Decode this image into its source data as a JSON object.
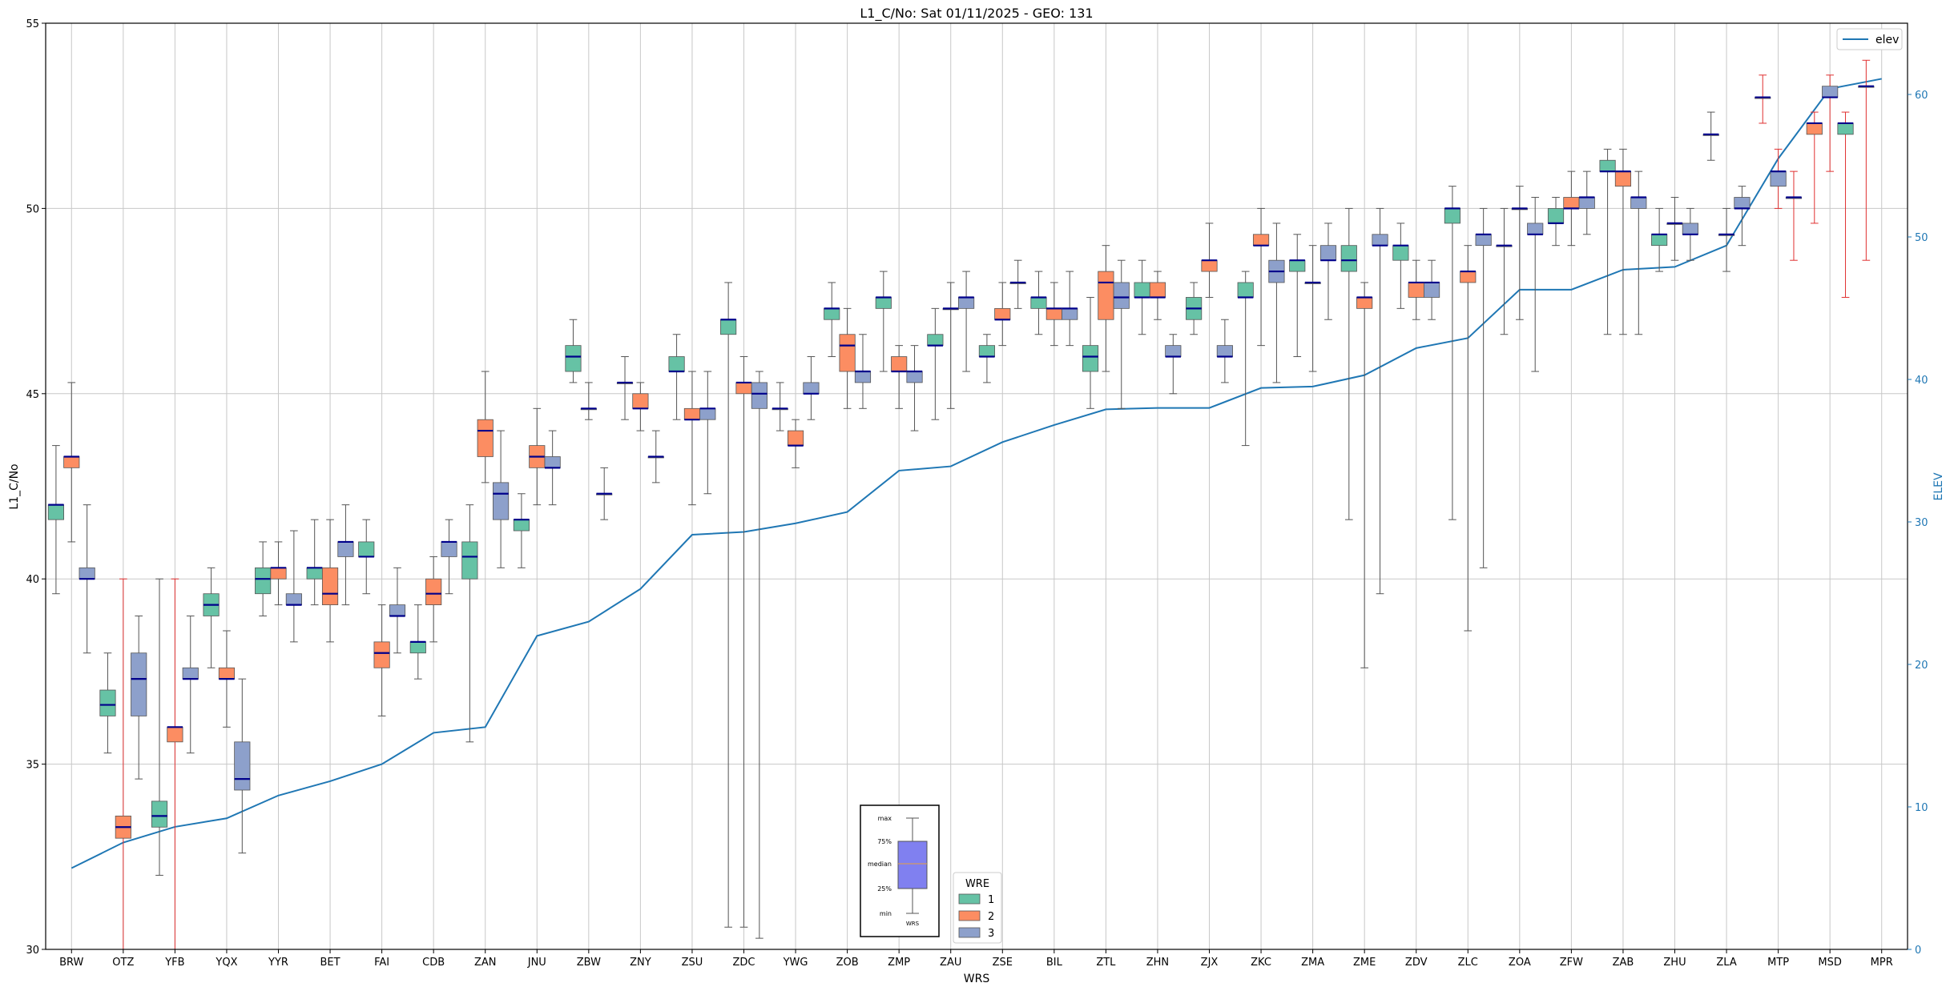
{
  "chart_data": {
    "type": "box",
    "title": "L1_C/No: Sat 01/11/2025 - GEO: 131",
    "xlabel": "WRS",
    "ylabel": "L1_C/No",
    "y2label": "ELEV",
    "ylim": [
      30,
      55
    ],
    "y2lim": [
      0,
      65
    ],
    "yticks": [
      30,
      35,
      40,
      45,
      50,
      55
    ],
    "y2ticks": [
      0,
      10,
      20,
      30,
      40,
      50,
      60
    ],
    "grid": true,
    "colors": {
      "wre1": "#66c2a5",
      "wre2": "#fc8d62",
      "wre3": "#8da0cb",
      "median": "#00008b",
      "elev": "#1f77b4",
      "outlier_whisker": "#e03030",
      "whisker": "#555555"
    },
    "categories": [
      "BRW",
      "OTZ",
      "YFB",
      "YQX",
      "YYR",
      "BET",
      "FAI",
      "CDB",
      "ZAN",
      "JNU",
      "ZBW",
      "ZNY",
      "ZSU",
      "ZDC",
      "YWG",
      "ZOB",
      "ZMP",
      "ZAU",
      "ZSE",
      "BIL",
      "ZTL",
      "ZHN",
      "ZJX",
      "ZKC",
      "ZMA",
      "ZME",
      "ZDV",
      "ZLC",
      "ZOA",
      "ZFW",
      "ZAB",
      "ZHU",
      "ZLA",
      "MTP",
      "MSD",
      "MPR"
    ],
    "elev_series": {
      "name": "elev",
      "values": [
        5.7,
        7.5,
        8.6,
        9.2,
        10.8,
        11.8,
        13.0,
        15.2,
        15.6,
        22.0,
        23.0,
        25.3,
        29.1,
        29.3,
        29.9,
        30.7,
        33.6,
        33.9,
        35.6,
        36.8,
        37.9,
        38.0,
        38.0,
        39.4,
        39.5,
        40.3,
        42.2,
        42.9,
        46.3,
        46.3,
        47.7,
        47.9,
        49.4,
        55.5,
        60.4,
        61.1
      ]
    },
    "boxes": [
      {
        "station": "BRW",
        "wre": 1,
        "min": 39.6,
        "q1": 41.6,
        "median": 42.0,
        "q3": 42.0,
        "max": 43.6
      },
      {
        "station": "BRW",
        "wre": 2,
        "min": 41.0,
        "q1": 43.0,
        "median": 43.3,
        "q3": 43.3,
        "max": 45.3
      },
      {
        "station": "BRW",
        "wre": 3,
        "min": 38.0,
        "q1": 40.0,
        "median": 40.0,
        "q3": 40.3,
        "max": 42.0
      },
      {
        "station": "OTZ",
        "wre": 1,
        "min": 35.3,
        "q1": 36.3,
        "median": 36.6,
        "q3": 37.0,
        "max": 38.0
      },
      {
        "station": "OTZ",
        "wre": 2,
        "min": 30.0,
        "q1": 33.0,
        "median": 33.3,
        "q3": 33.6,
        "max": 40.0,
        "outlier": true
      },
      {
        "station": "OTZ",
        "wre": 3,
        "min": 34.6,
        "q1": 36.3,
        "median": 37.3,
        "q3": 38.0,
        "max": 39.0
      },
      {
        "station": "YFB",
        "wre": 1,
        "min": 32.0,
        "q1": 33.3,
        "median": 33.6,
        "q3": 34.0,
        "max": 40.0
      },
      {
        "station": "YFB",
        "wre": 2,
        "min": 30.0,
        "q1": 35.6,
        "median": 36.0,
        "q3": 36.0,
        "max": 40.0,
        "outlier": true
      },
      {
        "station": "YFB",
        "wre": 3,
        "min": 35.3,
        "q1": 37.3,
        "median": 37.3,
        "q3": 37.6,
        "max": 39.0
      },
      {
        "station": "YQX",
        "wre": 1,
        "min": 37.6,
        "q1": 39.0,
        "median": 39.3,
        "q3": 39.6,
        "max": 40.3
      },
      {
        "station": "YQX",
        "wre": 2,
        "min": 36.0,
        "q1": 37.3,
        "median": 37.3,
        "q3": 37.6,
        "max": 38.6
      },
      {
        "station": "YQX",
        "wre": 3,
        "min": 32.6,
        "q1": 34.3,
        "median": 34.6,
        "q3": 35.6,
        "max": 37.3
      },
      {
        "station": "YYR",
        "wre": 1,
        "min": 39.0,
        "q1": 39.6,
        "median": 40.0,
        "q3": 40.3,
        "max": 41.0
      },
      {
        "station": "YYR",
        "wre": 2,
        "min": 39.3,
        "q1": 40.0,
        "median": 40.3,
        "q3": 40.3,
        "max": 41.0
      },
      {
        "station": "YYR",
        "wre": 3,
        "min": 38.3,
        "q1": 39.3,
        "median": 39.3,
        "q3": 39.6,
        "max": 41.3
      },
      {
        "station": "BET",
        "wre": 1,
        "min": 39.3,
        "q1": 40.0,
        "median": 40.3,
        "q3": 40.3,
        "max": 41.6
      },
      {
        "station": "BET",
        "wre": 2,
        "min": 38.3,
        "q1": 39.3,
        "median": 39.6,
        "q3": 40.3,
        "max": 41.6
      },
      {
        "station": "BET",
        "wre": 3,
        "min": 39.3,
        "q1": 40.6,
        "median": 41.0,
        "q3": 41.0,
        "max": 42.0
      },
      {
        "station": "FAI",
        "wre": 1,
        "min": 39.6,
        "q1": 40.6,
        "median": 40.6,
        "q3": 41.0,
        "max": 41.6
      },
      {
        "station": "FAI",
        "wre": 2,
        "min": 36.3,
        "q1": 37.6,
        "median": 38.0,
        "q3": 38.3,
        "max": 39.3
      },
      {
        "station": "FAI",
        "wre": 3,
        "min": 38.0,
        "q1": 39.0,
        "median": 39.0,
        "q3": 39.3,
        "max": 40.3
      },
      {
        "station": "CDB",
        "wre": 1,
        "min": 37.3,
        "q1": 38.0,
        "median": 38.3,
        "q3": 38.3,
        "max": 39.3
      },
      {
        "station": "CDB",
        "wre": 2,
        "min": 38.3,
        "q1": 39.3,
        "median": 39.6,
        "q3": 40.0,
        "max": 40.6
      },
      {
        "station": "CDB",
        "wre": 3,
        "min": 39.6,
        "q1": 40.6,
        "median": 41.0,
        "q3": 41.0,
        "max": 41.6
      },
      {
        "station": "ZAN",
        "wre": 1,
        "min": 35.6,
        "q1": 40.0,
        "median": 40.6,
        "q3": 41.0,
        "max": 42.0
      },
      {
        "station": "ZAN",
        "wre": 2,
        "min": 42.6,
        "q1": 43.3,
        "median": 44.0,
        "q3": 44.3,
        "max": 45.6
      },
      {
        "station": "ZAN",
        "wre": 3,
        "min": 40.3,
        "q1": 41.6,
        "median": 42.3,
        "q3": 42.6,
        "max": 44.0
      },
      {
        "station": "JNU",
        "wre": 1,
        "min": 40.3,
        "q1": 41.3,
        "median": 41.6,
        "q3": 41.6,
        "max": 42.3
      },
      {
        "station": "JNU",
        "wre": 2,
        "min": 42.0,
        "q1": 43.0,
        "median": 43.3,
        "q3": 43.6,
        "max": 44.6
      },
      {
        "station": "JNU",
        "wre": 3,
        "min": 42.0,
        "q1": 43.0,
        "median": 43.0,
        "q3": 43.3,
        "max": 44.0
      },
      {
        "station": "ZBW",
        "wre": 1,
        "min": 45.3,
        "q1": 45.6,
        "median": 46.0,
        "q3": 46.3,
        "max": 47.0
      },
      {
        "station": "ZBW",
        "wre": 3,
        "min": 44.3,
        "q1": 44.6,
        "median": 44.6,
        "q3": 44.6,
        "max": 45.3
      },
      {
        "station": "ZBW",
        "wre": 3,
        "min": 41.6,
        "q1": 42.3,
        "median": 42.3,
        "q3": 42.3,
        "max": 43.0
      },
      {
        "station": "ZNY",
        "wre": 3,
        "min": 44.3,
        "q1": 45.3,
        "median": 45.3,
        "q3": 45.3,
        "max": 46.0
      },
      {
        "station": "ZNY",
        "wre": 2,
        "min": 44.0,
        "q1": 44.6,
        "median": 44.6,
        "q3": 45.0,
        "max": 45.3
      },
      {
        "station": "ZNY",
        "wre": 3,
        "min": 42.6,
        "q1": 43.3,
        "median": 43.3,
        "q3": 43.3,
        "max": 44.0
      },
      {
        "station": "ZSU",
        "wre": 1,
        "min": 44.3,
        "q1": 45.6,
        "median": 45.6,
        "q3": 46.0,
        "max": 46.6
      },
      {
        "station": "ZSU",
        "wre": 2,
        "min": 42.0,
        "q1": 44.3,
        "median": 44.3,
        "q3": 44.6,
        "max": 45.6
      },
      {
        "station": "ZSU",
        "wre": 3,
        "min": 42.3,
        "q1": 44.3,
        "median": 44.6,
        "q3": 44.6,
        "max": 45.6
      },
      {
        "station": "ZDC",
        "wre": 1,
        "min": 30.6,
        "q1": 46.6,
        "median": 47.0,
        "q3": 47.0,
        "max": 48.0
      },
      {
        "station": "ZDC",
        "wre": 2,
        "min": 30.6,
        "q1": 45.0,
        "median": 45.3,
        "q3": 45.3,
        "max": 46.0
      },
      {
        "station": "ZDC",
        "wre": 3,
        "min": 30.3,
        "q1": 44.6,
        "median": 45.0,
        "q3": 45.3,
        "max": 45.6
      },
      {
        "station": "YWG",
        "wre": 3,
        "min": 44.0,
        "q1": 44.6,
        "median": 44.6,
        "q3": 44.6,
        "max": 45.3
      },
      {
        "station": "YWG",
        "wre": 2,
        "min": 43.0,
        "q1": 43.6,
        "median": 43.6,
        "q3": 44.0,
        "max": 44.3
      },
      {
        "station": "YWG",
        "wre": 3,
        "min": 44.3,
        "q1": 45.0,
        "median": 45.0,
        "q3": 45.3,
        "max": 46.0
      },
      {
        "station": "ZOB",
        "wre": 1,
        "min": 46.0,
        "q1": 47.0,
        "median": 47.3,
        "q3": 47.3,
        "max": 48.0
      },
      {
        "station": "ZOB",
        "wre": 2,
        "min": 44.6,
        "q1": 45.6,
        "median": 46.3,
        "q3": 46.6,
        "max": 47.3
      },
      {
        "station": "ZOB",
        "wre": 3,
        "min": 44.6,
        "q1": 45.3,
        "median": 45.6,
        "q3": 45.6,
        "max": 46.6
      },
      {
        "station": "ZMP",
        "wre": 1,
        "min": 45.6,
        "q1": 47.3,
        "median": 47.6,
        "q3": 47.6,
        "max": 48.3
      },
      {
        "station": "ZMP",
        "wre": 2,
        "min": 44.6,
        "q1": 45.6,
        "median": 45.6,
        "q3": 46.0,
        "max": 46.3
      },
      {
        "station": "ZMP",
        "wre": 3,
        "min": 44.0,
        "q1": 45.3,
        "median": 45.6,
        "q3": 45.6,
        "max": 46.3
      },
      {
        "station": "ZAU",
        "wre": 1,
        "min": 44.3,
        "q1": 46.3,
        "median": 46.3,
        "q3": 46.6,
        "max": 47.3
      },
      {
        "station": "ZAU",
        "wre": 3,
        "min": 44.6,
        "q1": 47.3,
        "median": 47.3,
        "q3": 47.3,
        "max": 48.0
      },
      {
        "station": "ZAU",
        "wre": 3,
        "min": 45.6,
        "q1": 47.3,
        "median": 47.6,
        "q3": 47.6,
        "max": 48.3
      },
      {
        "station": "ZSE",
        "wre": 1,
        "min": 45.3,
        "q1": 46.0,
        "median": 46.0,
        "q3": 46.3,
        "max": 46.6
      },
      {
        "station": "ZSE",
        "wre": 2,
        "min": 46.3,
        "q1": 47.0,
        "median": 47.0,
        "q3": 47.3,
        "max": 48.0
      },
      {
        "station": "ZSE",
        "wre": 3,
        "min": 47.3,
        "q1": 48.0,
        "median": 48.0,
        "q3": 48.0,
        "max": 48.6
      },
      {
        "station": "BIL",
        "wre": 1,
        "min": 46.6,
        "q1": 47.3,
        "median": 47.6,
        "q3": 47.6,
        "max": 48.3
      },
      {
        "station": "BIL",
        "wre": 2,
        "min": 46.3,
        "q1": 47.0,
        "median": 47.3,
        "q3": 47.3,
        "max": 48.0
      },
      {
        "station": "BIL",
        "wre": 3,
        "min": 46.3,
        "q1": 47.0,
        "median": 47.3,
        "q3": 47.3,
        "max": 48.3
      },
      {
        "station": "ZTL",
        "wre": 1,
        "min": 44.6,
        "q1": 45.6,
        "median": 46.0,
        "q3": 46.3,
        "max": 47.6
      },
      {
        "station": "ZTL",
        "wre": 2,
        "min": 45.6,
        "q1": 47.0,
        "median": 48.0,
        "q3": 48.3,
        "max": 49.0
      },
      {
        "station": "ZTL",
        "wre": 3,
        "min": 44.6,
        "q1": 47.3,
        "median": 47.6,
        "q3": 48.0,
        "max": 48.6
      },
      {
        "station": "ZHN",
        "wre": 1,
        "min": 46.6,
        "q1": 47.6,
        "median": 47.6,
        "q3": 48.0,
        "max": 48.6
      },
      {
        "station": "ZHN",
        "wre": 2,
        "min": 47.0,
        "q1": 47.6,
        "median": 47.6,
        "q3": 48.0,
        "max": 48.3
      },
      {
        "station": "ZHN",
        "wre": 3,
        "min": 45.0,
        "q1": 46.0,
        "median": 46.0,
        "q3": 46.3,
        "max": 46.6
      },
      {
        "station": "ZJX",
        "wre": 1,
        "min": 46.6,
        "q1": 47.0,
        "median": 47.3,
        "q3": 47.6,
        "max": 48.0
      },
      {
        "station": "ZJX",
        "wre": 2,
        "min": 47.6,
        "q1": 48.3,
        "median": 48.6,
        "q3": 48.6,
        "max": 49.6
      },
      {
        "station": "ZJX",
        "wre": 3,
        "min": 45.3,
        "q1": 46.0,
        "median": 46.0,
        "q3": 46.3,
        "max": 47.0
      },
      {
        "station": "ZKC",
        "wre": 1,
        "min": 43.6,
        "q1": 47.6,
        "median": 47.6,
        "q3": 48.0,
        "max": 48.3
      },
      {
        "station": "ZKC",
        "wre": 2,
        "min": 46.3,
        "q1": 49.0,
        "median": 49.0,
        "q3": 49.3,
        "max": 50.0
      },
      {
        "station": "ZKC",
        "wre": 3,
        "min": 45.3,
        "q1": 48.0,
        "median": 48.3,
        "q3": 48.6,
        "max": 49.6
      },
      {
        "station": "ZMA",
        "wre": 1,
        "min": 46.0,
        "q1": 48.3,
        "median": 48.6,
        "q3": 48.6,
        "max": 49.3
      },
      {
        "station": "ZMA",
        "wre": 3,
        "min": 45.6,
        "q1": 48.0,
        "median": 48.0,
        "q3": 48.0,
        "max": 49.0
      },
      {
        "station": "ZMA",
        "wre": 3,
        "min": 47.0,
        "q1": 48.6,
        "median": 48.6,
        "q3": 49.0,
        "max": 49.6
      },
      {
        "station": "ZME",
        "wre": 1,
        "min": 41.6,
        "q1": 48.3,
        "median": 48.6,
        "q3": 49.0,
        "max": 50.0
      },
      {
        "station": "ZME",
        "wre": 2,
        "min": 37.6,
        "q1": 47.3,
        "median": 47.6,
        "q3": 47.6,
        "max": 48.0
      },
      {
        "station": "ZME",
        "wre": 3,
        "min": 39.6,
        "q1": 49.0,
        "median": 49.0,
        "q3": 49.3,
        "max": 50.0
      },
      {
        "station": "ZDV",
        "wre": 1,
        "min": 47.3,
        "q1": 48.6,
        "median": 49.0,
        "q3": 49.0,
        "max": 49.6
      },
      {
        "station": "ZDV",
        "wre": 2,
        "min": 47.0,
        "q1": 47.6,
        "median": 48.0,
        "q3": 48.0,
        "max": 48.6
      },
      {
        "station": "ZDV",
        "wre": 3,
        "min": 47.0,
        "q1": 47.6,
        "median": 48.0,
        "q3": 48.0,
        "max": 48.6
      },
      {
        "station": "ZLC",
        "wre": 1,
        "min": 41.6,
        "q1": 49.6,
        "median": 50.0,
        "q3": 50.0,
        "max": 50.6
      },
      {
        "station": "ZLC",
        "wre": 2,
        "min": 38.6,
        "q1": 48.0,
        "median": 48.3,
        "q3": 48.3,
        "max": 49.0
      },
      {
        "station": "ZLC",
        "wre": 3,
        "min": 40.3,
        "q1": 49.0,
        "median": 49.3,
        "q3": 49.3,
        "max": 50.0
      },
      {
        "station": "ZOA",
        "wre": 3,
        "min": 46.6,
        "q1": 49.0,
        "median": 49.0,
        "q3": 49.0,
        "max": 50.0
      },
      {
        "station": "ZOA",
        "wre": 3,
        "min": 47.0,
        "q1": 50.0,
        "median": 50.0,
        "q3": 50.0,
        "max": 50.6
      },
      {
        "station": "ZOA",
        "wre": 3,
        "min": 45.6,
        "q1": 49.3,
        "median": 49.3,
        "q3": 49.6,
        "max": 50.3
      },
      {
        "station": "ZFW",
        "wre": 1,
        "min": 49.0,
        "q1": 49.6,
        "median": 49.6,
        "q3": 50.0,
        "max": 50.3
      },
      {
        "station": "ZFW",
        "wre": 2,
        "min": 49.0,
        "q1": 50.0,
        "median": 50.0,
        "q3": 50.3,
        "max": 51.0
      },
      {
        "station": "ZFW",
        "wre": 3,
        "min": 49.3,
        "q1": 50.0,
        "median": 50.3,
        "q3": 50.3,
        "max": 51.0
      },
      {
        "station": "ZAB",
        "wre": 1,
        "min": 46.6,
        "q1": 51.0,
        "median": 51.0,
        "q3": 51.3,
        "max": 51.6
      },
      {
        "station": "ZAB",
        "wre": 2,
        "min": 46.6,
        "q1": 50.6,
        "median": 51.0,
        "q3": 51.0,
        "max": 51.6
      },
      {
        "station": "ZAB",
        "wre": 3,
        "min": 46.6,
        "q1": 50.0,
        "median": 50.3,
        "q3": 50.3,
        "max": 51.0
      },
      {
        "station": "ZHU",
        "wre": 1,
        "min": 48.3,
        "q1": 49.0,
        "median": 49.3,
        "q3": 49.3,
        "max": 50.0
      },
      {
        "station": "ZHU",
        "wre": 3,
        "min": 48.6,
        "q1": 49.6,
        "median": 49.6,
        "q3": 49.6,
        "max": 50.3
      },
      {
        "station": "ZHU",
        "wre": 3,
        "min": 48.6,
        "q1": 49.3,
        "median": 49.3,
        "q3": 49.6,
        "max": 50.0
      },
      {
        "station": "ZLA",
        "wre": 3,
        "min": 51.3,
        "q1": 52.0,
        "median": 52.0,
        "q3": 52.0,
        "max": 52.6
      },
      {
        "station": "ZLA",
        "wre": 3,
        "min": 48.3,
        "q1": 49.3,
        "median": 49.3,
        "q3": 49.3,
        "max": 50.0
      },
      {
        "station": "ZLA",
        "wre": 3,
        "min": 49.0,
        "q1": 50.0,
        "median": 50.0,
        "q3": 50.3,
        "max": 50.6
      },
      {
        "station": "MTP",
        "wre": 2,
        "min": 52.3,
        "q1": 53.0,
        "median": 53.0,
        "q3": 53.0,
        "max": 53.6,
        "outlier": true
      },
      {
        "station": "MTP",
        "wre": 3,
        "min": 50.0,
        "q1": 50.6,
        "median": 51.0,
        "q3": 51.0,
        "max": 51.6,
        "outlier": true
      },
      {
        "station": "MTP",
        "wre": 3,
        "min": 48.6,
        "q1": 50.3,
        "median": 50.3,
        "q3": 50.3,
        "max": 51.0,
        "outlier": true
      },
      {
        "station": "MSD",
        "wre": 2,
        "min": 49.6,
        "q1": 52.0,
        "median": 52.3,
        "q3": 52.3,
        "max": 52.6,
        "outlier": true
      },
      {
        "station": "MSD",
        "wre": 3,
        "min": 51.0,
        "q1": 53.0,
        "median": 53.0,
        "q3": 53.3,
        "max": 53.6,
        "outlier": true
      },
      {
        "station": "MSD",
        "wre": 1,
        "min": 47.6,
        "q1": 52.0,
        "median": 52.3,
        "q3": 52.3,
        "max": 52.6,
        "outlier": true
      },
      {
        "station": "MPR",
        "wre": 3,
        "min": 48.6,
        "q1": 53.3,
        "median": 53.3,
        "q3": 53.3,
        "max": 54.0,
        "outlier": true
      }
    ],
    "legend_elev": {
      "label": "elev",
      "position": "top-right"
    },
    "legend_wre": {
      "title": "WRE",
      "entries": [
        "1",
        "2",
        "3"
      ],
      "position": "bottom-center"
    },
    "key_diagram": {
      "labels": [
        "max",
        "75%",
        "median",
        "25%",
        "min"
      ],
      "caption": "WRS"
    }
  }
}
